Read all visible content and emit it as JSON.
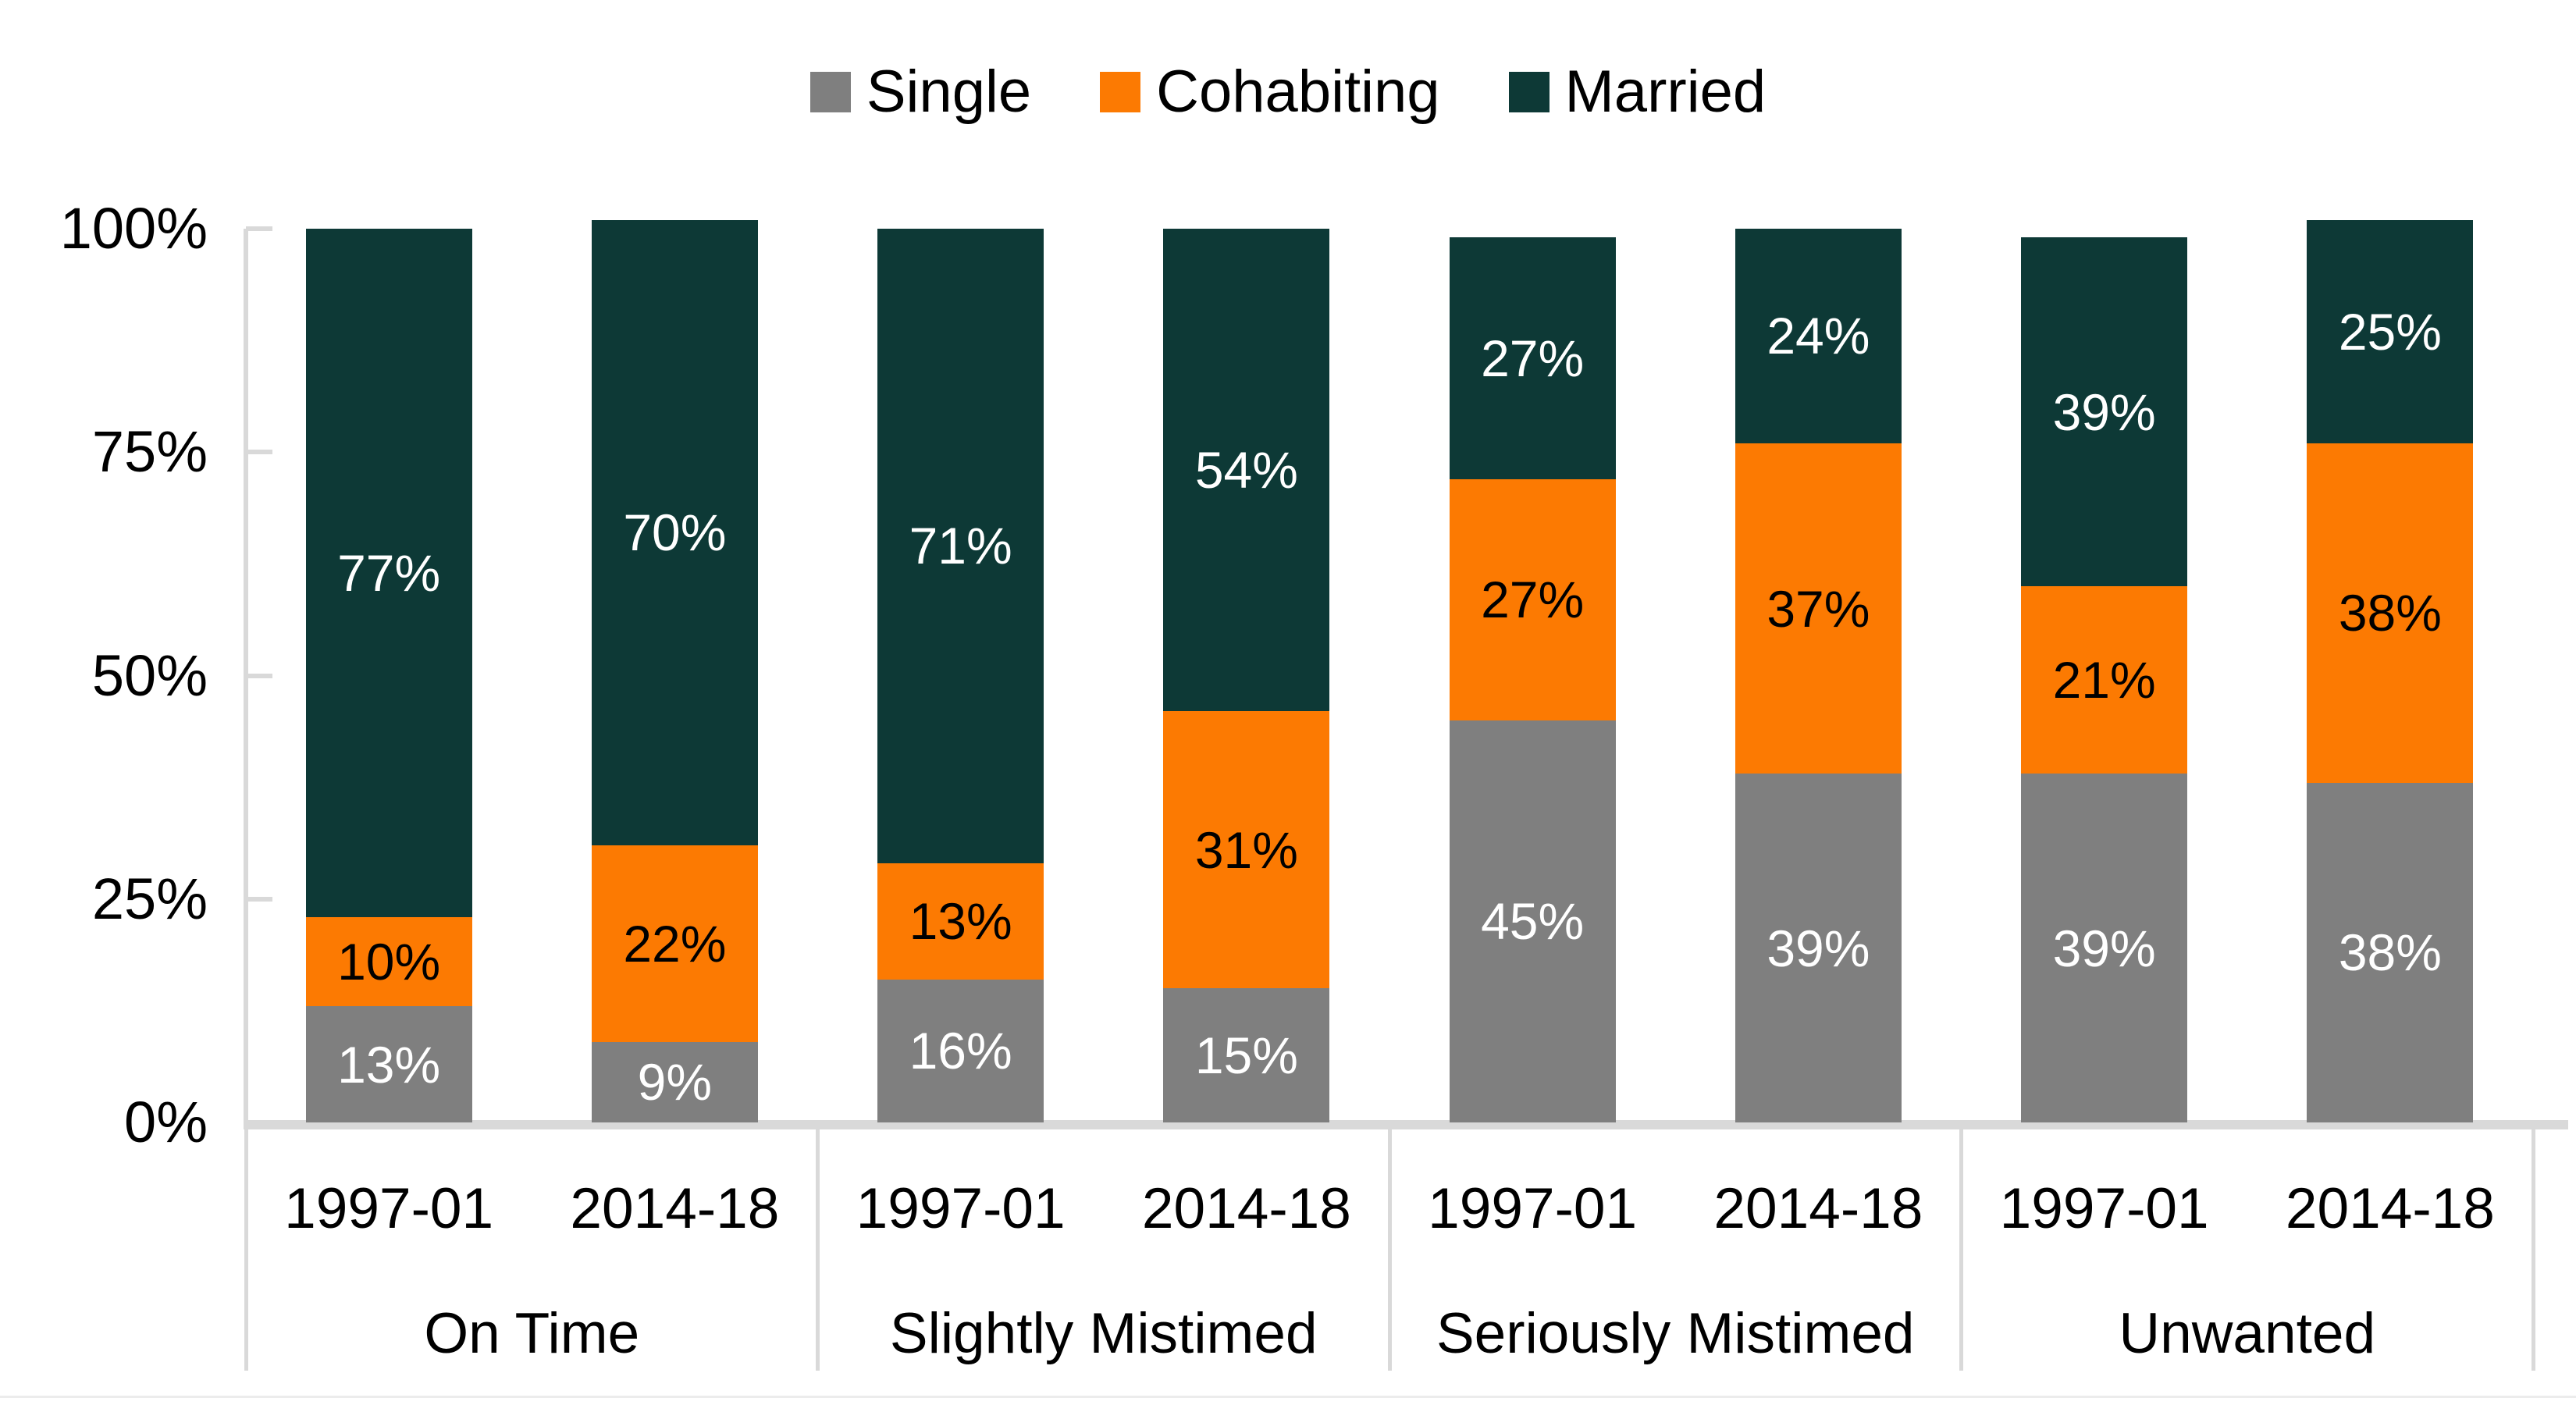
{
  "chart_data": {
    "type": "bar",
    "stacked": true,
    "title": "",
    "value_suffix": "%",
    "ylim": [
      0,
      100
    ],
    "grid": false,
    "legend_position": "top",
    "axis_color": "#d9d9d9",
    "ytick_values": [
      100,
      75,
      50,
      25,
      0
    ],
    "ytick_labels": [
      "100%",
      "75%",
      "50%",
      "25%",
      "0%"
    ],
    "groups": [
      "On Time",
      "Slightly Mistimed",
      "Seriously Mistimed",
      "Unwanted"
    ],
    "bar_period_labels": [
      "1997-01",
      "2014-18",
      "1997-01",
      "2014-18",
      "1997-01",
      "2014-18",
      "1997-01",
      "2014-18"
    ],
    "series": [
      {
        "name": "Single",
        "color": "#7f7f7f",
        "label_color": "#ffffff",
        "values": [
          13,
          9,
          16,
          15,
          45,
          39,
          39,
          38
        ]
      },
      {
        "name": "Cohabiting",
        "color": "#fc7a02",
        "label_color": "#000000",
        "values": [
          10,
          22,
          13,
          31,
          27,
          37,
          21,
          38
        ]
      },
      {
        "name": "Married",
        "color": "#0d3936",
        "label_color": "#ffffff",
        "values": [
          77,
          70,
          71,
          54,
          27,
          24,
          39,
          25
        ]
      }
    ]
  }
}
